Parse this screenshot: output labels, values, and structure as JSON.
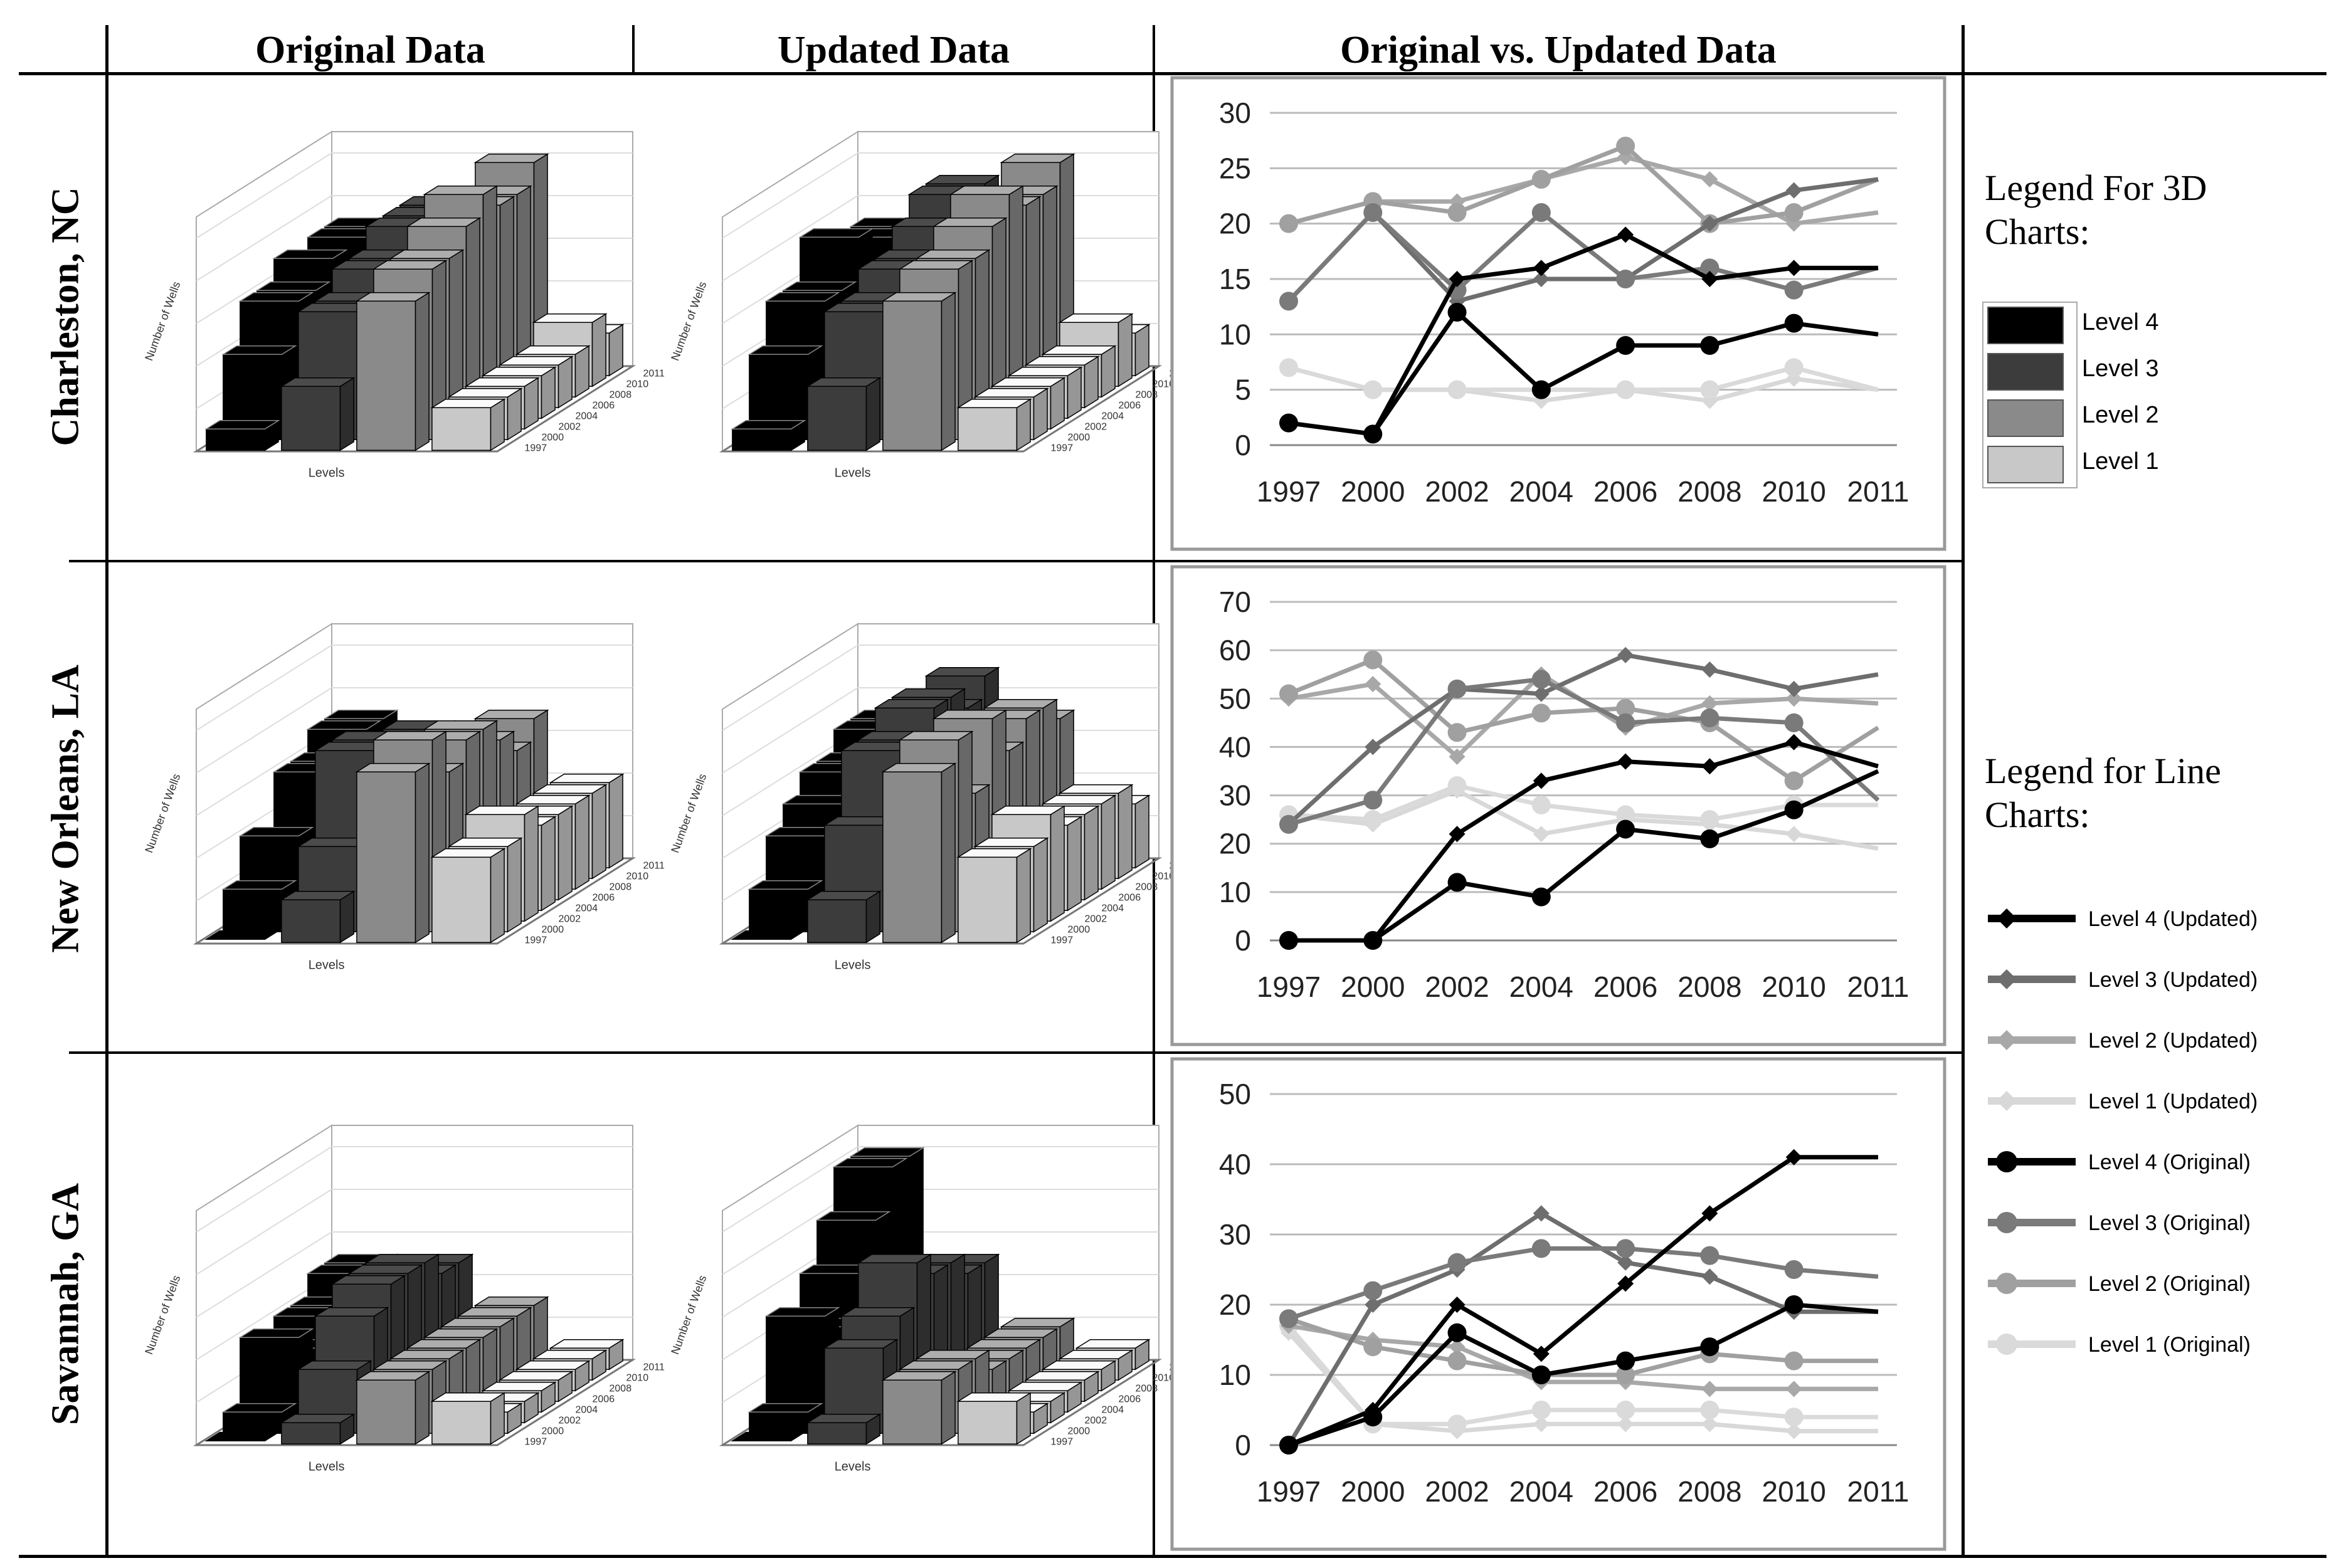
{
  "headers": {
    "original": "Original Data",
    "updated": "Updated Data",
    "comparison": "Original vs. Updated Data"
  },
  "rows": [
    {
      "label": "Charleston, NC"
    },
    {
      "label": "New Orleans, LA"
    },
    {
      "label": "Savannah, GA"
    }
  ],
  "colors": {
    "level4": "#000000",
    "level3": "#3c3c3c",
    "level2": "#8a8a8a",
    "level1": "#c8c8c8",
    "l4u": "#000000",
    "l3u": "#6e6e6e",
    "l2u": "#a8a8a8",
    "l1u": "#d8d8d8",
    "l4o": "#000000",
    "l3o": "#7a7a7a",
    "l2o": "#a0a0a0",
    "l1o": "#dadada"
  },
  "legend3d": {
    "title": "Legend For 3D Charts:",
    "items": [
      "Level 4",
      "Level 3",
      "Level 2",
      "Level 1"
    ]
  },
  "legendLine": {
    "title": "Legend for Line Charts:",
    "items": [
      {
        "label": "Level 4 (Updated)",
        "key": "l4u",
        "marker": "diamond"
      },
      {
        "label": "Level 3 (Updated)",
        "key": "l3u",
        "marker": "diamond"
      },
      {
        "label": "Level 2 (Updated)",
        "key": "l2u",
        "marker": "diamond"
      },
      {
        "label": "Level 1 (Updated)",
        "key": "l1u",
        "marker": "diamond"
      },
      {
        "label": "Level 4 (Original)",
        "key": "l4o",
        "marker": "circle"
      },
      {
        "label": "Level 3 (Original)",
        "key": "l3o",
        "marker": "circle"
      },
      {
        "label": "Level 2 (Original)",
        "key": "l2o",
        "marker": "circle"
      },
      {
        "label": "Level 1 (Original)",
        "key": "l1o",
        "marker": "circle"
      }
    ]
  },
  "bar3d_labels": {
    "xlabel": "Levels",
    "ylabel": "Number of Wells",
    "years": [
      "1997",
      "2000",
      "2002",
      "2004",
      "2006",
      "2008",
      "2010",
      "2011"
    ]
  },
  "chart_data": [
    {
      "type": "line",
      "title": "Charleston, NC",
      "categories": [
        "1997",
        "2000",
        "2002",
        "2004",
        "2006",
        "2008",
        "2010",
        "2011"
      ],
      "ylim": [
        0,
        30
      ],
      "yticks": [
        "0",
        "5",
        "10",
        "15",
        "20",
        "25",
        "30"
      ],
      "series": [
        {
          "name": "Level 4 (Updated)",
          "key": "l4u",
          "marker": "diamond",
          "values": [
            2,
            1,
            15,
            16,
            19,
            15,
            16,
            16
          ]
        },
        {
          "name": "Level 3 (Updated)",
          "key": "l3u",
          "marker": "diamond",
          "values": [
            13,
            21,
            13,
            15,
            15,
            20,
            23,
            24
          ]
        },
        {
          "name": "Level 2 (Updated)",
          "key": "l2u",
          "marker": "diamond",
          "values": [
            20,
            22,
            22,
            24,
            26,
            24,
            20,
            21
          ]
        },
        {
          "name": "Level 1 (Updated)",
          "key": "l1u",
          "marker": "diamond",
          "values": [
            7,
            5,
            5,
            4,
            5,
            4,
            6,
            5
          ]
        },
        {
          "name": "Level 4 (Original)",
          "key": "l4o",
          "marker": "circle",
          "values": [
            2,
            1,
            12,
            5,
            9,
            9,
            11,
            10
          ]
        },
        {
          "name": "Level 3 (Original)",
          "key": "l3o",
          "marker": "circle",
          "values": [
            13,
            21,
            14,
            21,
            15,
            16,
            14,
            16
          ]
        },
        {
          "name": "Level 2 (Original)",
          "key": "l2o",
          "marker": "circle",
          "values": [
            20,
            22,
            21,
            24,
            27,
            20,
            21,
            24
          ]
        },
        {
          "name": "Level 1 (Original)",
          "key": "l1o",
          "marker": "circle",
          "values": [
            7,
            5,
            5,
            5,
            5,
            5,
            7,
            5
          ]
        }
      ]
    },
    {
      "type": "line",
      "title": "New Orleans, LA",
      "categories": [
        "1997",
        "2000",
        "2002",
        "2004",
        "2006",
        "2008",
        "2010",
        "2011"
      ],
      "ylim": [
        0,
        70
      ],
      "yticks": [
        "0",
        "10",
        "20",
        "30",
        "40",
        "50",
        "60",
        "70"
      ],
      "series": [
        {
          "name": "Level 4 (Updated)",
          "key": "l4u",
          "marker": "diamond",
          "values": [
            0,
            0,
            22,
            33,
            37,
            36,
            41,
            36
          ]
        },
        {
          "name": "Level 3 (Updated)",
          "key": "l3u",
          "marker": "diamond",
          "values": [
            24,
            40,
            52,
            51,
            59,
            56,
            52,
            55
          ]
        },
        {
          "name": "Level 2 (Updated)",
          "key": "l2u",
          "marker": "diamond",
          "values": [
            50,
            53,
            38,
            55,
            44,
            49,
            50,
            49
          ]
        },
        {
          "name": "Level 1 (Updated)",
          "key": "l1u",
          "marker": "diamond",
          "values": [
            26,
            24,
            31,
            22,
            25,
            24,
            22,
            19
          ]
        },
        {
          "name": "Level 4 (Original)",
          "key": "l4o",
          "marker": "circle",
          "values": [
            0,
            0,
            12,
            9,
            23,
            21,
            27,
            35
          ]
        },
        {
          "name": "Level 3 (Original)",
          "key": "l3o",
          "marker": "circle",
          "values": [
            24,
            29,
            52,
            54,
            45,
            46,
            45,
            29
          ]
        },
        {
          "name": "Level 2 (Original)",
          "key": "l2o",
          "marker": "circle",
          "values": [
            51,
            58,
            43,
            47,
            48,
            45,
            33,
            44
          ]
        },
        {
          "name": "Level 1 (Original)",
          "key": "l1o",
          "marker": "circle",
          "values": [
            26,
            25,
            32,
            28,
            26,
            25,
            28,
            28
          ]
        }
      ]
    },
    {
      "type": "line",
      "title": "Savannah, GA",
      "categories": [
        "1997",
        "2000",
        "2002",
        "2004",
        "2006",
        "2008",
        "2010",
        "2011"
      ],
      "ylim": [
        0,
        50
      ],
      "yticks": [
        "0",
        "10",
        "20",
        "30",
        "40",
        "50"
      ],
      "series": [
        {
          "name": "Level 4 (Updated)",
          "key": "l4u",
          "marker": "diamond",
          "values": [
            0,
            5,
            20,
            13,
            23,
            33,
            41,
            41
          ]
        },
        {
          "name": "Level 3 (Updated)",
          "key": "l3u",
          "marker": "diamond",
          "values": [
            0,
            20,
            25,
            33,
            26,
            24,
            19,
            19
          ]
        },
        {
          "name": "Level 2 (Updated)",
          "key": "l2u",
          "marker": "diamond",
          "values": [
            17,
            15,
            14,
            9,
            9,
            8,
            8,
            8
          ]
        },
        {
          "name": "Level 1 (Updated)",
          "key": "l1u",
          "marker": "diamond",
          "values": [
            16,
            3,
            2,
            3,
            3,
            3,
            2,
            2
          ]
        },
        {
          "name": "Level 4 (Original)",
          "key": "l4o",
          "marker": "circle",
          "values": [
            0,
            4,
            16,
            10,
            12,
            14,
            20,
            19
          ]
        },
        {
          "name": "Level 3 (Original)",
          "key": "l3o",
          "marker": "circle",
          "values": [
            18,
            22,
            26,
            28,
            28,
            27,
            25,
            24
          ]
        },
        {
          "name": "Level 2 (Original)",
          "key": "l2o",
          "marker": "circle",
          "values": [
            18,
            14,
            12,
            10,
            10,
            13,
            12,
            12
          ]
        },
        {
          "name": "Level 1 (Original)",
          "key": "l1o",
          "marker": "circle",
          "values": [
            17,
            3,
            3,
            5,
            5,
            5,
            4,
            4
          ]
        }
      ]
    }
  ],
  "bars3d": [
    {
      "original": {
        "l4": [
          1,
          4,
          6,
          6,
          7,
          6,
          7,
          7
        ],
        "l3": [
          3,
          6,
          6,
          7,
          7,
          8,
          8,
          8
        ],
        "l2": [
          7,
          8,
          8,
          9,
          10,
          9,
          9,
          10
        ],
        "l1": [
          2,
          2,
          2,
          2,
          2,
          2,
          3,
          2
        ]
      },
      "updated": {
        "l4": [
          1,
          4,
          6,
          6,
          8,
          6,
          7,
          7
        ],
        "l3": [
          3,
          6,
          6,
          7,
          7,
          8,
          9,
          9
        ],
        "l2": [
          7,
          8,
          8,
          9,
          10,
          9,
          9,
          10
        ],
        "l1": [
          2,
          2,
          2,
          2,
          2,
          2,
          3,
          2
        ]
      }
    },
    {
      "original": {
        "l4": [
          0,
          2,
          4,
          3,
          6,
          6,
          7,
          7
        ],
        "l3": [
          2,
          4,
          8,
          8,
          7,
          7,
          7,
          6
        ],
        "l2": [
          8,
          9,
          7,
          8,
          8,
          7,
          6,
          7
        ],
        "l1": [
          4,
          4,
          5,
          4,
          4,
          4,
          4,
          4
        ]
      },
      "updated": {
        "l4": [
          0,
          2,
          4,
          5,
          6,
          6,
          7,
          7
        ],
        "l3": [
          2,
          5,
          8,
          8,
          9,
          9,
          8,
          9
        ],
        "l2": [
          8,
          9,
          6,
          9,
          7,
          8,
          8,
          7
        ],
        "l1": [
          4,
          4,
          5,
          4,
          4,
          4,
          4,
          3
        ]
      }
    },
    {
      "original": {
        "l4": [
          0,
          1,
          4,
          3,
          4,
          4,
          5,
          5
        ],
        "l3": [
          1,
          3,
          5,
          6,
          6,
          6,
          5,
          5
        ],
        "l2": [
          3,
          3,
          3,
          3,
          3,
          3,
          3,
          3
        ],
        "l1": [
          2,
          1,
          1,
          1,
          1,
          1,
          1,
          1
        ]
      },
      "updated": {
        "l4": [
          0,
          1,
          5,
          4,
          6,
          8,
          10,
          10
        ],
        "l3": [
          1,
          4,
          5,
          7,
          6,
          6,
          5,
          5
        ],
        "l2": [
          3,
          3,
          3,
          2,
          2,
          2,
          2,
          2
        ],
        "l1": [
          2,
          1,
          1,
          1,
          1,
          1,
          1,
          1
        ]
      }
    }
  ]
}
